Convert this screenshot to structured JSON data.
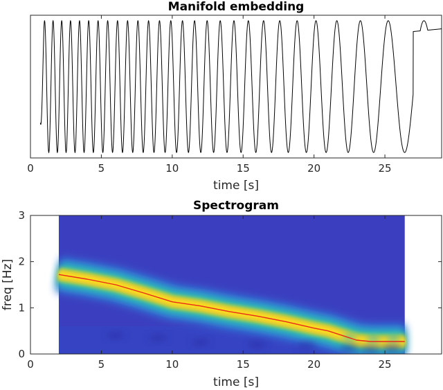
{
  "chart_data": [
    {
      "type": "line",
      "title": "Manifold embedding",
      "xlabel": "time [s]",
      "ylabel": "",
      "xlim": [
        0,
        29
      ],
      "ylim": [
        -1.05,
        1.05
      ],
      "xticks": [
        0,
        5,
        10,
        15,
        20,
        25
      ],
      "yticks": [],
      "grid": false,
      "series": [
        {
          "color": "#000000",
          "signal": "chirp",
          "start_time": 0.7,
          "end_time": 29,
          "start_freq_hz": 1.7,
          "end_freq_hz": 0.27,
          "values_description": "oscillating trace with decreasing frequency; amplitude near full range"
        }
      ]
    },
    {
      "type": "heatmap",
      "title": "Spectrogram",
      "xlabel": "time [s]",
      "ylabel": "freq [Hz]",
      "xlim": [
        0,
        29
      ],
      "ylim": [
        0,
        3
      ],
      "xticks": [
        0,
        5,
        10,
        15,
        20,
        25
      ],
      "yticks": [
        0,
        1,
        2,
        3
      ],
      "grid": false,
      "data_x_range": [
        2,
        26.4
      ],
      "colormap": "parula",
      "ridge": {
        "color": "#e8291c",
        "x": [
          2,
          4,
          6,
          8,
          10,
          12,
          14,
          16,
          18,
          20,
          21,
          22,
          23,
          24,
          26.4
        ],
        "y": [
          1.72,
          1.62,
          1.5,
          1.32,
          1.13,
          1.04,
          0.92,
          0.82,
          0.7,
          0.56,
          0.5,
          0.4,
          0.3,
          0.27,
          0.27
        ]
      }
    }
  ]
}
